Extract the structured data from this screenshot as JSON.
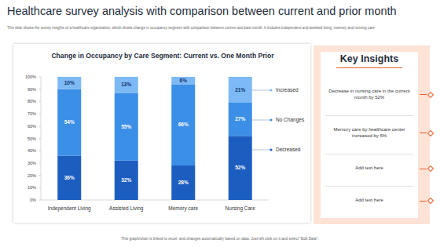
{
  "header": {
    "title": "Healthcare survey analysis with comparison between current and prior month",
    "subtitle": "This slide shows the survey insights of a healthcare organization, which shows change in occupancy segment with comparison between current and past month. It includes independent and assisted living, memory and nursing care"
  },
  "chart_data": {
    "type": "bar",
    "stacked": true,
    "data_labels": true,
    "grid": false,
    "legend": "right",
    "title": "Change in Occupancy by Care Segment: Current vs. One Month Prior",
    "categories": [
      "Independent Living",
      "Assisted Living",
      "Memory care",
      "Nursing Care"
    ],
    "series": [
      {
        "name": "Decreased",
        "color": "#1c5dc0",
        "values": [
          36,
          32,
          28,
          52
        ],
        "value_labels": [
          "36%",
          "32%",
          "28%",
          "52%"
        ]
      },
      {
        "name": "No Changes",
        "color": "#3b8fe6",
        "values": [
          54,
          55,
          66,
          27
        ],
        "value_labels": [
          "54%",
          "55%",
          "66%",
          "27%"
        ]
      },
      {
        "name": "Increased",
        "color": "#7db9f4",
        "values": [
          10,
          13,
          6,
          21
        ],
        "value_labels": [
          "10%",
          "13%",
          "6%",
          "21%"
        ]
      }
    ],
    "ylim": [
      0,
      100
    ],
    "yticks": [
      {
        "value": 0,
        "label": "0%"
      },
      {
        "value": 10,
        "label": "10%"
      },
      {
        "value": 20,
        "label": "20%"
      },
      {
        "value": 30,
        "label": "30%"
      },
      {
        "value": 40,
        "label": "40%"
      },
      {
        "value": 50,
        "label": "50%"
      },
      {
        "value": 60,
        "label": "60%"
      },
      {
        "value": 70,
        "label": "70%"
      },
      {
        "value": 80,
        "label": "80%"
      },
      {
        "value": 90,
        "label": "90%"
      },
      {
        "value": 100,
        "label": "100%"
      }
    ]
  },
  "insights": {
    "title": "Key Insights",
    "items": [
      "Decrease in nursing care in the current month by 52%",
      "Memory care by healthcare center increased by 6%",
      "Add text here",
      "Add text here"
    ]
  },
  "footer": "This graph/chart is linked to excel, and changes automatically based on data. Just left click on it and select \"Edit Data\"."
}
